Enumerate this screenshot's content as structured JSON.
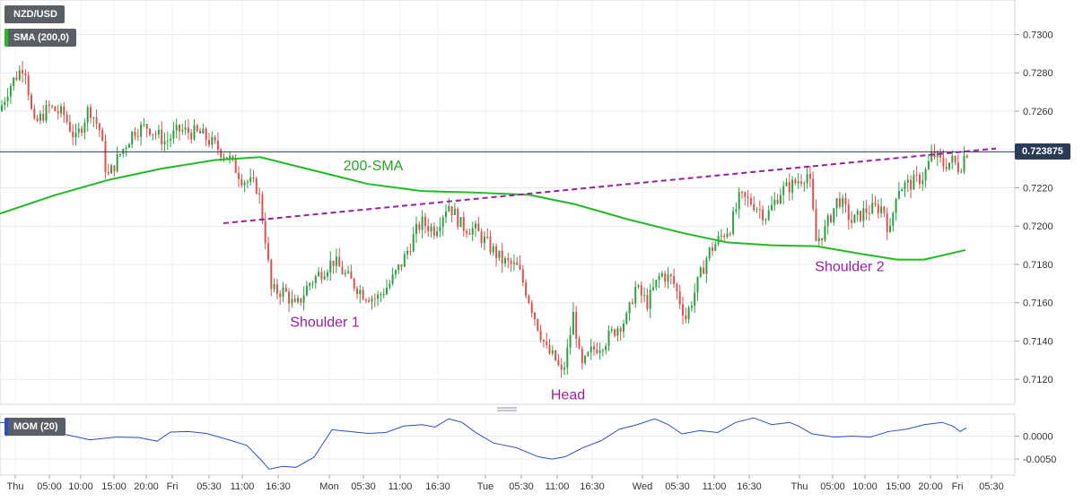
{
  "header": {
    "symbol": "NZD/USD",
    "indicator": "SMA (200,0)",
    "indicator_color": "#22bb22"
  },
  "sub_panel": {
    "label": "MOM (20)",
    "color": "#2f4cc8"
  },
  "price_label": "0.723875",
  "chart_data": [
    {
      "type": "line",
      "panel": "price",
      "y_ticks": [
        "0.7300",
        "0.7280",
        "0.7260",
        "0.7240",
        "0.7220",
        "0.7200",
        "0.7180",
        "0.7160",
        "0.7140",
        "0.7120"
      ],
      "ylim": [
        0.7107,
        0.7318
      ],
      "x_tick_labels": [
        "Thu",
        "05:00",
        "10:00",
        "15:00",
        "20:00",
        "Fri",
        "05:30",
        "11:00",
        "16:30",
        "Mon",
        "05:30",
        "11:00",
        "16:30",
        "Tue",
        "05:30",
        "11:00",
        "16:30",
        "Wed",
        "05:30",
        "11:00",
        "16:30",
        "Thu",
        "05:00",
        "10:00",
        "15:00",
        "20:00",
        "Fri",
        "05:30"
      ],
      "current_price": 0.723875,
      "grid": true,
      "candle_colors": {
        "up": "#2ea043",
        "down": "#d9534f"
      },
      "price_path": [
        [
          0,
          0.726
        ],
        [
          10,
          0.7272
        ],
        [
          28,
          0.7285
        ],
        [
          38,
          0.7252
        ],
        [
          55,
          0.7262
        ],
        [
          72,
          0.7258
        ],
        [
          85,
          0.7245
        ],
        [
          100,
          0.7262
        ],
        [
          112,
          0.725
        ],
        [
          120,
          0.7225
        ],
        [
          135,
          0.7238
        ],
        [
          150,
          0.725
        ],
        [
          165,
          0.7252
        ],
        [
          185,
          0.7244
        ],
        [
          200,
          0.725
        ],
        [
          225,
          0.7248
        ],
        [
          240,
          0.7242
        ],
        [
          255,
          0.7236
        ],
        [
          270,
          0.7225
        ],
        [
          288,
          0.722
        ],
        [
          296,
          0.7195
        ],
        [
          303,
          0.7166
        ],
        [
          318,
          0.7166
        ],
        [
          330,
          0.7157
        ],
        [
          345,
          0.717
        ],
        [
          372,
          0.7182
        ],
        [
          390,
          0.7172
        ],
        [
          405,
          0.7165
        ],
        [
          420,
          0.7162
        ],
        [
          435,
          0.717
        ],
        [
          450,
          0.7182
        ],
        [
          462,
          0.7195
        ],
        [
          470,
          0.7202
        ],
        [
          485,
          0.7198
        ],
        [
          500,
          0.7212
        ],
        [
          515,
          0.72
        ],
        [
          530,
          0.7198
        ],
        [
          545,
          0.719
        ],
        [
          560,
          0.7182
        ],
        [
          578,
          0.7178
        ],
        [
          590,
          0.7162
        ],
        [
          600,
          0.7148
        ],
        [
          610,
          0.7135
        ],
        [
          620,
          0.713
        ],
        [
          627,
          0.7122
        ],
        [
          632,
          0.7132
        ],
        [
          640,
          0.7155
        ],
        [
          648,
          0.7125
        ],
        [
          660,
          0.7135
        ],
        [
          675,
          0.714
        ],
        [
          690,
          0.7148
        ],
        [
          700,
          0.7152
        ],
        [
          708,
          0.7168
        ],
        [
          722,
          0.716
        ],
        [
          737,
          0.7175
        ],
        [
          750,
          0.7172
        ],
        [
          765,
          0.7152
        ],
        [
          778,
          0.717
        ],
        [
          790,
          0.7186
        ],
        [
          805,
          0.7195
        ],
        [
          815,
          0.72
        ],
        [
          825,
          0.7215
        ],
        [
          840,
          0.7212
        ],
        [
          855,
          0.7205
        ],
        [
          870,
          0.7218
        ],
        [
          885,
          0.7222
        ],
        [
          902,
          0.7228
        ],
        [
          910,
          0.7192
        ],
        [
          920,
          0.7198
        ],
        [
          935,
          0.7215
        ],
        [
          950,
          0.7202
        ],
        [
          965,
          0.7208
        ],
        [
          985,
          0.721
        ],
        [
          992,
          0.7195
        ],
        [
          1000,
          0.722
        ],
        [
          1015,
          0.7222
        ],
        [
          1030,
          0.7226
        ],
        [
          1040,
          0.7238
        ],
        [
          1052,
          0.7232
        ],
        [
          1062,
          0.7234
        ],
        [
          1070,
          0.723
        ],
        [
          1077,
          0.7239
        ]
      ],
      "series": [
        {
          "name": "200-SMA",
          "color": "#22bb22",
          "points": [
            [
              0,
              0.72065
            ],
            [
              60,
              0.7216
            ],
            [
              120,
              0.7224
            ],
            [
              180,
              0.723
            ],
            [
              240,
              0.72345
            ],
            [
              290,
              0.7236
            ],
            [
              350,
              0.7229
            ],
            [
              410,
              0.7222
            ],
            [
              470,
              0.72183
            ],
            [
              530,
              0.72175
            ],
            [
              590,
              0.72163
            ],
            [
              640,
              0.72115
            ],
            [
              700,
              0.72035
            ],
            [
              760,
              0.71965
            ],
            [
              810,
              0.71915
            ],
            [
              860,
              0.719
            ],
            [
              910,
              0.71895
            ],
            [
              960,
              0.71855
            ],
            [
              1000,
              0.71825
            ],
            [
              1030,
              0.71825
            ],
            [
              1076,
              0.71875
            ]
          ]
        }
      ],
      "annotations": [
        {
          "text": "200-SMA",
          "x": 416,
          "y": 0.7229,
          "color": "#22aa22"
        },
        {
          "text": "Shoulder 1",
          "x": 362,
          "y": 0.71475,
          "color": "#9b1fa0"
        },
        {
          "text": "Head",
          "x": 633,
          "y": 0.71095,
          "color": "#9b1fa0"
        },
        {
          "text": "Shoulder 2",
          "x": 947,
          "y": 0.71765,
          "color": "#9b1fa0"
        }
      ],
      "trendline": {
        "style": "dashed",
        "color": "#9b1fa0",
        "from": [
          249,
          0.72015
        ],
        "to": [
          1110,
          0.72405
        ]
      }
    },
    {
      "type": "line",
      "panel": "momentum",
      "title": "MOM (20)",
      "y_ticks": [
        "0.0000",
        "-0.0050"
      ],
      "ylim": [
        -0.0085,
        0.0048
      ],
      "series": [
        {
          "name": "MOM (20)",
          "color": "#2f4cc8",
          "points": [
            [
              0,
              0.003
            ],
            [
              20,
              0.0028
            ],
            [
              40,
              0.0019
            ],
            [
              70,
              0.0005
            ],
            [
              100,
              -0.0008
            ],
            [
              130,
              -0.0002
            ],
            [
              155,
              -0.0003
            ],
            [
              175,
              -0.0011
            ],
            [
              190,
              0.0009
            ],
            [
              210,
              0.001
            ],
            [
              230,
              0.0006
            ],
            [
              255,
              -0.0008
            ],
            [
              275,
              -0.002
            ],
            [
              290,
              -0.005
            ],
            [
              300,
              -0.0072
            ],
            [
              315,
              -0.0066
            ],
            [
              330,
              -0.0068
            ],
            [
              350,
              -0.0046
            ],
            [
              370,
              0.0014
            ],
            [
              390,
              0.001
            ],
            [
              410,
              0.0006
            ],
            [
              430,
              0.0008
            ],
            [
              450,
              0.0022
            ],
            [
              470,
              0.0025
            ],
            [
              485,
              0.002
            ],
            [
              500,
              0.0038
            ],
            [
              515,
              0.003
            ],
            [
              530,
              0.0008
            ],
            [
              550,
              -0.0015
            ],
            [
              575,
              -0.0025
            ],
            [
              600,
              -0.0045
            ],
            [
              615,
              -0.005
            ],
            [
              630,
              -0.0045
            ],
            [
              650,
              -0.0025
            ],
            [
              670,
              -0.001
            ],
            [
              690,
              0.0015
            ],
            [
              710,
              0.0025
            ],
            [
              730,
              0.0038
            ],
            [
              745,
              0.0025
            ],
            [
              760,
              0.0005
            ],
            [
              780,
              0.0012
            ],
            [
              800,
              0.0008
            ],
            [
              820,
              0.003
            ],
            [
              840,
              0.004
            ],
            [
              860,
              0.0025
            ],
            [
              880,
              0.003
            ],
            [
              890,
              0.0022
            ],
            [
              905,
              0.0005
            ],
            [
              930,
              -0.0002
            ],
            [
              950,
              0.0
            ],
            [
              970,
              -0.0002
            ],
            [
              990,
              0.001
            ],
            [
              1010,
              0.0015
            ],
            [
              1030,
              0.0025
            ],
            [
              1050,
              0.003
            ],
            [
              1062,
              0.0022
            ],
            [
              1070,
              0.001
            ],
            [
              1077,
              0.0018
            ]
          ]
        }
      ]
    }
  ]
}
